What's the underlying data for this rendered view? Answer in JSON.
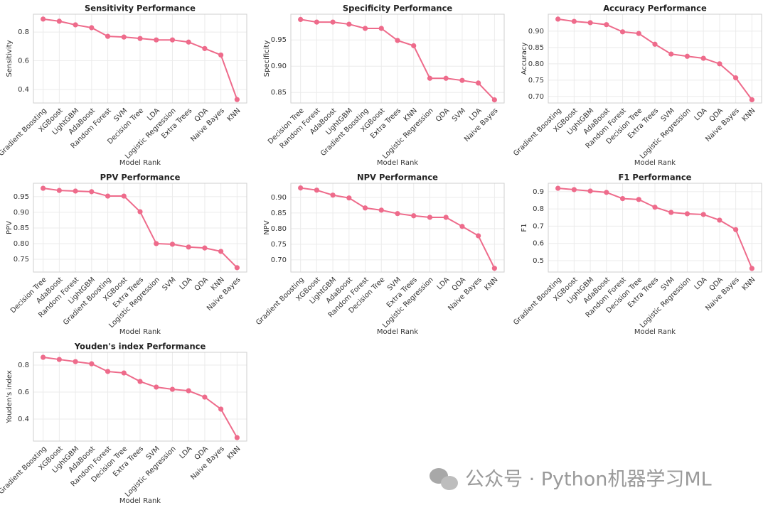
{
  "chart_data": [
    {
      "type": "line",
      "title": "Sensitivity Performance",
      "xlabel": "Model Rank",
      "ylabel": "Sensitivity",
      "color": "#ee6b8b",
      "grid": true,
      "categories": [
        "Gradient Boosting",
        "XGBoost",
        "LightGBM",
        "AdaBoost",
        "Random Forest",
        "SVM",
        "Decision Tree",
        "LDA",
        "Logistic Regression",
        "Extra Trees",
        "QDA",
        "Naive Bayes",
        "KNN"
      ],
      "values": [
        0.89,
        0.875,
        0.85,
        0.83,
        0.77,
        0.765,
        0.755,
        0.745,
        0.745,
        0.73,
        0.685,
        0.64,
        0.33
      ],
      "ylim": [
        0.306,
        0.924
      ],
      "yticks": [
        0.4,
        0.6,
        0.8
      ]
    },
    {
      "type": "line",
      "title": "Specificity Performance",
      "xlabel": "Model Rank",
      "ylabel": "Specificity",
      "color": "#ee6b8b",
      "grid": true,
      "categories": [
        "Decision Tree",
        "Random Forest",
        "AdaBoost",
        "LightGBM",
        "Gradient Boosting",
        "XGBoost",
        "Extra Trees",
        "KNN",
        "Logistic Regression",
        "QDA",
        "SVM",
        "LDA",
        "Naive Bayes"
      ],
      "values": [
        0.989,
        0.984,
        0.984,
        0.98,
        0.972,
        0.972,
        0.949,
        0.939,
        0.877,
        0.877,
        0.873,
        0.868,
        0.836
      ],
      "ylim": [
        0.83,
        0.999
      ],
      "yticks": [
        0.85,
        {
          "value": 0.9,
          "label": "0.90"
        },
        0.95
      ]
    },
    {
      "type": "line",
      "title": "Accuracy Performance",
      "xlabel": "Model Rank",
      "ylabel": "Accuracy",
      "color": "#ee6b8b",
      "grid": true,
      "categories": [
        "Gradient Boosting",
        "XGBoost",
        "LightGBM",
        "AdaBoost",
        "Random Forest",
        "Decision Tree",
        "Extra Trees",
        "SVM",
        "Logistic Regression",
        "LDA",
        "QDA",
        "Naive Bayes",
        "KNN"
      ],
      "values": [
        0.937,
        0.93,
        0.926,
        0.92,
        0.898,
        0.893,
        0.86,
        0.83,
        0.823,
        0.817,
        0.8,
        0.757,
        0.69
      ],
      "ylim": [
        0.68,
        0.952
      ],
      "yticks": [
        {
          "value": 0.7,
          "label": "0.70"
        },
        0.75,
        {
          "value": 0.8,
          "label": "0.80"
        },
        0.85,
        {
          "value": 0.9,
          "label": "0.90"
        }
      ]
    },
    {
      "type": "line",
      "title": "PPV Performance",
      "xlabel": "Model Rank",
      "ylabel": "PPV",
      "color": "#ee6b8b",
      "grid": true,
      "categories": [
        "Decision Tree",
        "AdaBoost",
        "Random Forest",
        "LightGBM",
        "Gradient Boosting",
        "XGBoost",
        "Extra Trees",
        "Logistic Regression",
        "SVM",
        "LDA",
        "QDA",
        "KNN",
        "Naive Bayes"
      ],
      "values": [
        0.977,
        0.97,
        0.968,
        0.966,
        0.952,
        0.952,
        0.902,
        0.8,
        0.798,
        0.789,
        0.786,
        0.775,
        0.723
      ],
      "ylim": [
        0.709,
        0.993
      ],
      "yticks": [
        0.75,
        {
          "value": 0.8,
          "label": "0.80"
        },
        0.85,
        {
          "value": 0.9,
          "label": "0.90"
        },
        0.95
      ]
    },
    {
      "type": "line",
      "title": "NPV Performance",
      "xlabel": "Model Rank",
      "ylabel": "NPV",
      "color": "#ee6b8b",
      "grid": true,
      "categories": [
        "Gradient Boosting",
        "XGBoost",
        "LightGBM",
        "AdaBoost",
        "Random Forest",
        "Decision Tree",
        "SVM",
        "Extra Trees",
        "Logistic Regression",
        "LDA",
        "QDA",
        "Naive Bayes",
        "KNN"
      ],
      "values": [
        0.93,
        0.923,
        0.907,
        0.898,
        0.866,
        0.859,
        0.848,
        0.841,
        0.836,
        0.836,
        0.807,
        0.777,
        0.673
      ],
      "ylim": [
        0.661,
        0.945
      ],
      "yticks": [
        {
          "value": 0.7,
          "label": "0.70"
        },
        0.75,
        {
          "value": 0.8,
          "label": "0.80"
        },
        0.85,
        {
          "value": 0.9,
          "label": "0.90"
        }
      ]
    },
    {
      "type": "line",
      "title": "F1 Performance",
      "xlabel": "Model Rank",
      "ylabel": "F1",
      "color": "#ee6b8b",
      "grid": true,
      "categories": [
        "Gradient Boosting",
        "XGBoost",
        "LightGBM",
        "AdaBoost",
        "Random Forest",
        "Decision Tree",
        "Extra Trees",
        "SVM",
        "Logistic Regression",
        "LDA",
        "QDA",
        "Naive Bayes",
        "KNN"
      ],
      "values": [
        0.92,
        0.912,
        0.904,
        0.896,
        0.86,
        0.855,
        0.81,
        0.78,
        0.772,
        0.768,
        0.735,
        0.68,
        0.455
      ],
      "ylim": [
        0.434,
        0.949
      ],
      "yticks": [
        0.5,
        0.6,
        0.7,
        0.8,
        0.9
      ]
    },
    {
      "type": "line",
      "title": "Youden's index Performance",
      "xlabel": "Model Rank",
      "ylabel": "Youden's index",
      "color": "#ee6b8b",
      "grid": true,
      "categories": [
        "Gradient Boosting",
        "XGBoost",
        "LightGBM",
        "AdaBoost",
        "Random Forest",
        "Decision Tree",
        "Extra Trees",
        "SVM",
        "Logistic Regression",
        "LDA",
        "QDA",
        "Naive Bayes",
        "KNN"
      ],
      "values": [
        0.858,
        0.842,
        0.826,
        0.81,
        0.753,
        0.742,
        0.679,
        0.637,
        0.621,
        0.61,
        0.563,
        0.474,
        0.263
      ],
      "ylim": [
        0.237,
        0.895
      ],
      "yticks": [
        0.4,
        0.6,
        0.8
      ]
    }
  ],
  "watermark": "公众号 · Python机器学习ML"
}
